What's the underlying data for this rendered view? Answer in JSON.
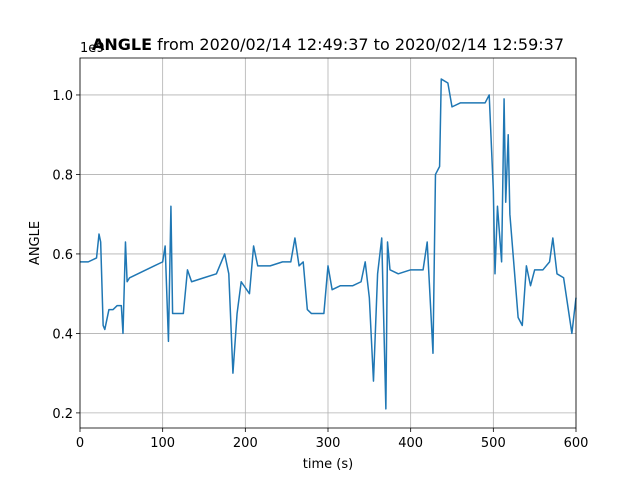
{
  "chart_data": {
    "type": "line",
    "title_bold": "ANGLE",
    "title": "from 2020/02/14 12:49:37 to 2020/02/14 12:59:37",
    "xlabel": "time (s)",
    "ylabel": "ANGLE",
    "offset_label": "1e9",
    "x": [
      0,
      10,
      20,
      23,
      25,
      28,
      30,
      35,
      40,
      45,
      50,
      52,
      55,
      57,
      60,
      70,
      80,
      90,
      100,
      103,
      107,
      110,
      112,
      115,
      125,
      130,
      135,
      150,
      165,
      175,
      180,
      185,
      190,
      195,
      205,
      210,
      215,
      230,
      245,
      255,
      260,
      265,
      270,
      275,
      280,
      295,
      300,
      305,
      315,
      330,
      340,
      345,
      350,
      355,
      360,
      365,
      370,
      372,
      375,
      385,
      400,
      415,
      420,
      427,
      430,
      435,
      437,
      445,
      450,
      460,
      475,
      490,
      495,
      500,
      502,
      505,
      510,
      513,
      515,
      518,
      520,
      525,
      530,
      535,
      540,
      545,
      550,
      560,
      568,
      572,
      577,
      585,
      595,
      600
    ],
    "series": [
      {
        "name": "ANGLE",
        "color": "#1f77b4",
        "values": [
          0.58,
          0.58,
          0.59,
          0.65,
          0.63,
          0.42,
          0.41,
          0.46,
          0.46,
          0.47,
          0.47,
          0.4,
          0.63,
          0.53,
          0.54,
          0.55,
          0.56,
          0.57,
          0.58,
          0.62,
          0.38,
          0.72,
          0.45,
          0.45,
          0.45,
          0.56,
          0.53,
          0.54,
          0.55,
          0.6,
          0.55,
          0.3,
          0.45,
          0.53,
          0.5,
          0.62,
          0.57,
          0.57,
          0.58,
          0.58,
          0.64,
          0.57,
          0.58,
          0.46,
          0.45,
          0.45,
          0.57,
          0.51,
          0.52,
          0.52,
          0.53,
          0.58,
          0.49,
          0.28,
          0.55,
          0.64,
          0.21,
          0.63,
          0.56,
          0.55,
          0.56,
          0.56,
          0.63,
          0.35,
          0.8,
          0.82,
          1.04,
          1.03,
          0.97,
          0.98,
          0.98,
          0.98,
          1.0,
          0.76,
          0.55,
          0.72,
          0.58,
          0.99,
          0.73,
          0.9,
          0.7,
          0.57,
          0.44,
          0.42,
          0.57,
          0.52,
          0.56,
          0.56,
          0.58,
          0.64,
          0.55,
          0.54,
          0.4,
          0.49
        ]
      }
    ],
    "xlim": [
      0,
      600
    ],
    "xticks": [
      0,
      100,
      200,
      300,
      400,
      500,
      600
    ],
    "ylim": [
      0.162,
      1.093
    ],
    "yticks": [
      0.2,
      0.4,
      0.6,
      0.8,
      {
        "value": 1,
        "label": "1.0"
      }
    ],
    "grid": true
  }
}
